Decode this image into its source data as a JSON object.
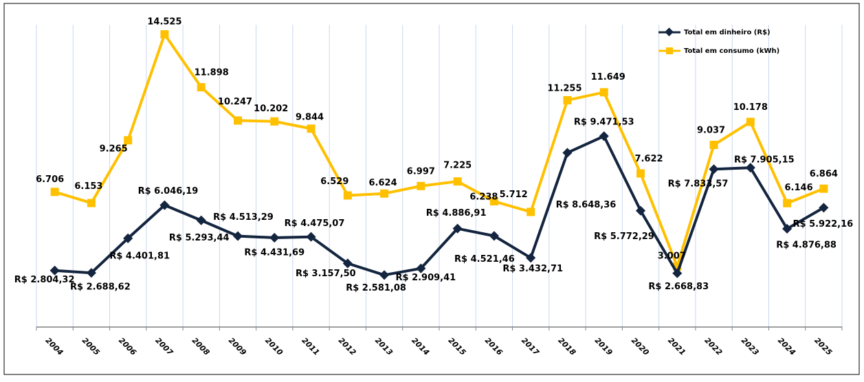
{
  "chart_data": {
    "type": "line",
    "title": "",
    "xlabel": "",
    "ylabel": "",
    "ylim": [
      0,
      15000
    ],
    "grid": "vertical",
    "legend_position": "top-right",
    "categories": [
      "2004",
      "2005",
      "2006",
      "2007",
      "2008",
      "2009",
      "2010",
      "2011",
      "2012",
      "2013",
      "2014",
      "2015",
      "2016",
      "2017",
      "2018",
      "2019",
      "2020",
      "2021",
      "2022",
      "2023",
      "2024",
      "2025"
    ],
    "series": [
      {
        "name": "Total em dinheiro (R$)",
        "color": "#14253f",
        "marker": "diamond",
        "values": [
          2804.32,
          2688.62,
          4401.81,
          6046.19,
          5293.44,
          4513.29,
          4431.69,
          4475.07,
          3157.5,
          2581.08,
          2909.41,
          4886.91,
          4521.46,
          3432.71,
          8648.36,
          9471.53,
          5772.29,
          2668.83,
          7833.57,
          7905.15,
          4876.88,
          5922.16
        ],
        "data_labels": [
          "R$ 2.804,32",
          "R$ 2.688,62",
          "R$ 4.401,81",
          "R$ 6.046,19",
          "R$ 5.293,44",
          "R$ 4.513,29",
          "R$ 4.431,69",
          "R$ 4.475,07",
          "R$ 3.157,50",
          "R$ 2.581,08",
          "R$ 2.909,41",
          "R$ 4.886,91",
          "R$ 4.521,46",
          "R$ 3.432,71",
          "R$ 8.648,36",
          "R$ 9.471,53",
          "R$ 5.772,29",
          "R$ 2.668,83",
          "R$ 7.833,57",
          "R$ 7.905,15",
          "R$ 4.876,88",
          "R$ 5.922,16"
        ]
      },
      {
        "name": "Total em consumo (kWh)",
        "color": "#ffc000",
        "marker": "square",
        "values": [
          6706,
          6153,
          9265,
          14525,
          11898,
          10247,
          10202,
          9844,
          6529,
          6624,
          6997,
          7225,
          6238,
          5712,
          11255,
          11649,
          7622,
          3007,
          9037,
          10178,
          6146,
          6864
        ],
        "data_labels": [
          "6.706",
          "6.153",
          "9.265",
          "14.525",
          "11.898",
          "10.247",
          "10.202",
          "9.844",
          "6.529",
          "6.624",
          "6.997",
          "7.225",
          "6.238",
          "5.712",
          "11.255",
          "11.649",
          "7.622",
          "3.007",
          "9.037",
          "10.178",
          "6.146",
          "6.864"
        ]
      }
    ]
  }
}
